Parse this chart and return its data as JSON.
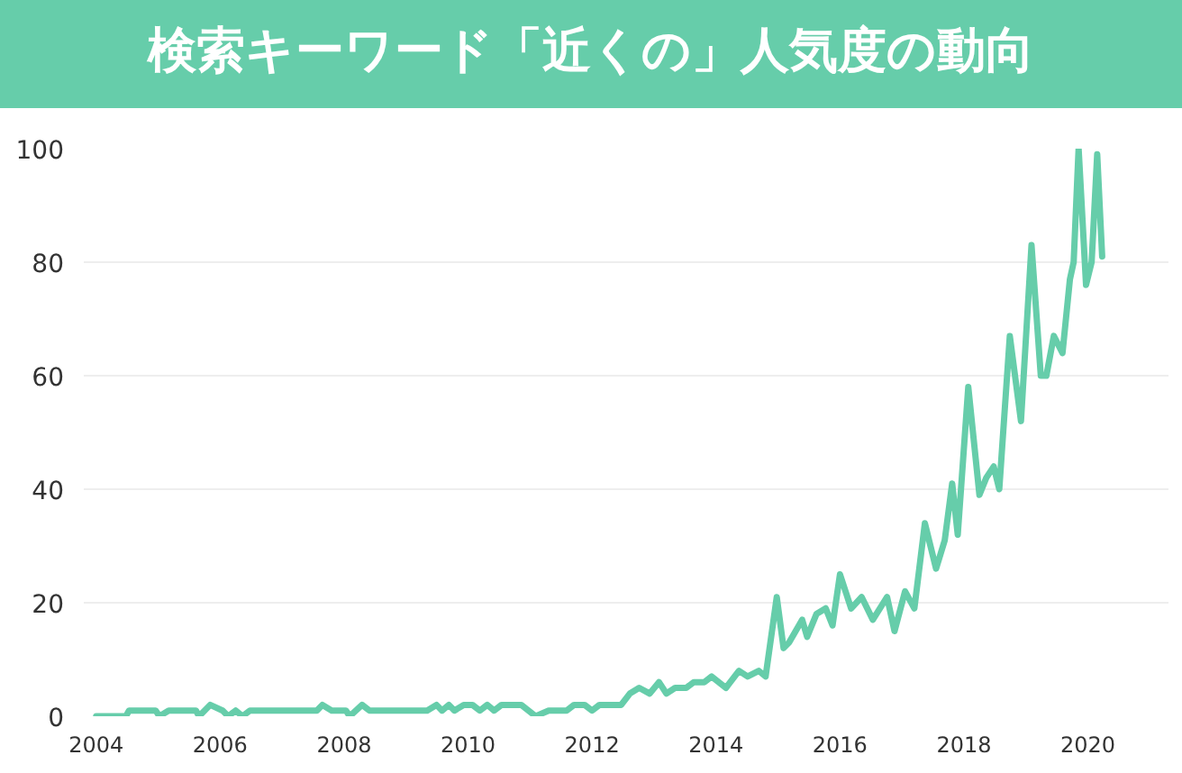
{
  "chart_data": {
    "type": "line",
    "title": "検索キーワード「近くの」人気度の動向",
    "x": [
      2004.0,
      2004.48,
      2004.53,
      2004.96,
      2005.02,
      2005.17,
      2005.61,
      2005.66,
      2005.84,
      2006.04,
      2006.13,
      2006.25,
      2006.36,
      2006.48,
      2007.56,
      2007.65,
      2007.8,
      2008.03,
      2008.09,
      2008.29,
      2008.41,
      2009.34,
      2009.49,
      2009.58,
      2009.69,
      2009.78,
      2009.93,
      2010.07,
      2010.19,
      2010.31,
      2010.42,
      2010.54,
      2010.86,
      2011.09,
      2011.3,
      2011.59,
      2011.71,
      2011.88,
      2012.0,
      2012.12,
      2012.47,
      2012.61,
      2012.76,
      2012.93,
      2013.08,
      2013.2,
      2013.34,
      2013.52,
      2013.64,
      2013.81,
      2013.93,
      2014.16,
      2014.37,
      2014.51,
      2014.69,
      2014.8,
      2014.98,
      2015.09,
      2015.18,
      2015.39,
      2015.47,
      2015.62,
      2015.77,
      2015.88,
      2016.0,
      2016.18,
      2016.35,
      2016.53,
      2016.76,
      2016.88,
      2017.05,
      2017.2,
      2017.37,
      2017.55,
      2017.69,
      2017.81,
      2017.9,
      2018.07,
      2018.25,
      2018.36,
      2018.48,
      2018.57,
      2018.74,
      2018.92,
      2019.09,
      2019.24,
      2019.33,
      2019.45,
      2019.59,
      2019.71,
      2019.77,
      2019.85,
      2019.97,
      2020.06,
      2020.15,
      2020.23
    ],
    "series": [
      {
        "color": "#66cdaa",
        "values": [
          0,
          0,
          1,
          1,
          0,
          1,
          1,
          0,
          2,
          1,
          0,
          1,
          0,
          1,
          1,
          2,
          1,
          1,
          0,
          2,
          1,
          1,
          2,
          1,
          2,
          1,
          2,
          2,
          1,
          2,
          1,
          2,
          2,
          0,
          1,
          1,
          2,
          2,
          1,
          2,
          2,
          4,
          5,
          4,
          6,
          4,
          5,
          5,
          6,
          6,
          7,
          5,
          8,
          7,
          8,
          7,
          21,
          12,
          13,
          17,
          14,
          18,
          19,
          16,
          25,
          19,
          21,
          17,
          21,
          15,
          22,
          19,
          34,
          26,
          31,
          41,
          32,
          58,
          39,
          42,
          44,
          40,
          67,
          52,
          83,
          60,
          60,
          67,
          64,
          77,
          80,
          100,
          76,
          80,
          99,
          81
        ]
      }
    ],
    "xlim": [
      2003.8,
      2021.3
    ],
    "ylim": [
      0,
      100
    ],
    "xticks": [
      2004,
      2006,
      2008,
      2010,
      2012,
      2014,
      2016,
      2018,
      2020
    ],
    "yticks": [
      0,
      20,
      40,
      60,
      80,
      100
    ],
    "grid": "y",
    "line_style": "solid",
    "marker": "none"
  }
}
